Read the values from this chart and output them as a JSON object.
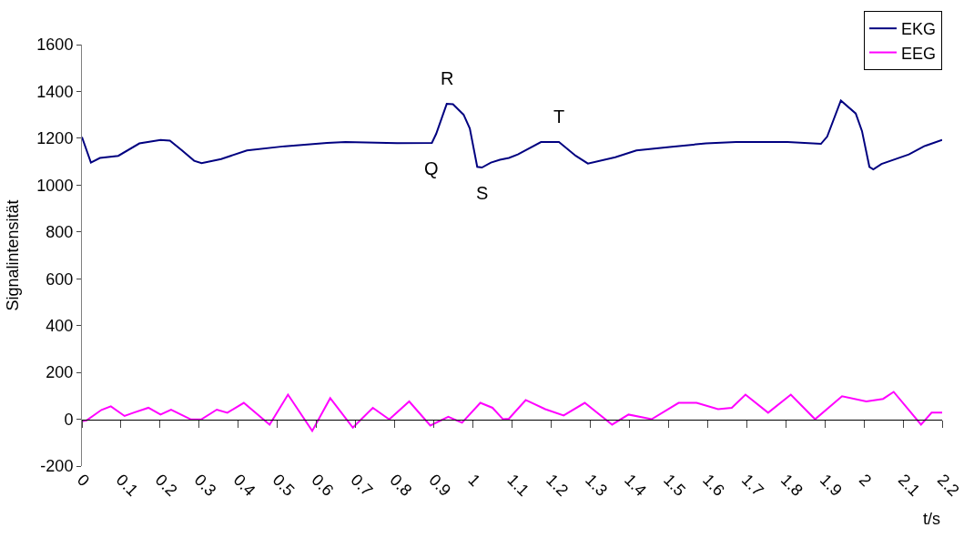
{
  "chart_data": {
    "type": "line",
    "xlabel": "t/s",
    "ylabel": "Signalintensität",
    "xlim": [
      0,
      2.2
    ],
    "xticks": [
      0,
      0.1,
      0.2,
      0.3,
      0.4,
      0.5,
      0.6,
      0.7,
      0.8,
      0.9,
      1,
      1.1,
      1.2,
      1.3,
      1.4,
      1.5,
      1.6,
      1.7,
      1.8,
      1.9,
      2,
      2.1,
      2.2
    ],
    "ylim": [
      -200,
      1600
    ],
    "yticks": [
      -200,
      0,
      200,
      400,
      600,
      800,
      1000,
      1200,
      1400,
      1600
    ],
    "legend": "top right",
    "marker": "none",
    "line_style": "solid",
    "annotations": [
      {
        "text": "R",
        "x": 0.933,
        "y": 1347
      },
      {
        "text": "Q",
        "x": 0.895,
        "y": 1180
      },
      {
        "text": "S",
        "x": 1.023,
        "y": 1075
      },
      {
        "text": "T",
        "x": 1.22,
        "y": 1184
      }
    ],
    "series": [
      {
        "name": "EKG",
        "color": "#000080",
        "x": [
          0,
          0.023,
          0.046,
          0.093,
          0.147,
          0.201,
          0.225,
          0.256,
          0.287,
          0.306,
          0.356,
          0.422,
          0.519,
          0.627,
          0.674,
          0.806,
          0.895,
          0.906,
          0.933,
          0.949,
          0.976,
          0.992,
          1.011,
          1.023,
          1.046,
          1.069,
          1.092,
          1.115,
          1.174,
          1.22,
          1.263,
          1.294,
          1.364,
          1.418,
          1.503,
          1.596,
          1.673,
          1.805,
          1.89,
          1.906,
          1.941,
          1.979,
          1.995,
          2.014,
          2.024,
          2.045,
          2.115,
          2.154,
          2.2
        ],
        "values": [
          1205,
          1096,
          1116,
          1125,
          1178,
          1193,
          1190,
          1148,
          1104,
          1094,
          1111,
          1148,
          1166,
          1180,
          1184,
          1179,
          1180,
          1219,
          1347,
          1345,
          1301,
          1242,
          1078,
          1075,
          1096,
          1108,
          1116,
          1131,
          1184,
          1184,
          1125,
          1092,
          1119,
          1148,
          1163,
          1178,
          1184,
          1184,
          1176,
          1207,
          1361,
          1306,
          1231,
          1078,
          1067,
          1090,
          1131,
          1166,
          1193
        ]
      },
      {
        "name": "EEG",
        "color": "#ff00ff",
        "x": [
          0,
          0.012,
          0.05,
          0.074,
          0.109,
          0.132,
          0.17,
          0.201,
          0.228,
          0.279,
          0.306,
          0.345,
          0.372,
          0.414,
          0.48,
          0.527,
          0.589,
          0.635,
          0.693,
          0.744,
          0.786,
          0.837,
          0.891,
          0.937,
          0.972,
          1.019,
          1.05,
          1.077,
          1.092,
          1.135,
          1.185,
          1.232,
          1.286,
          1.356,
          1.398,
          1.457,
          1.526,
          1.572,
          1.627,
          1.662,
          1.697,
          1.755,
          1.813,
          1.875,
          1.944,
          2.006,
          2.049,
          2.076,
          2.146,
          2.173,
          2.2
        ],
        "values": [
          -9,
          -5,
          40,
          55,
          14,
          28,
          49,
          20,
          41,
          -1,
          0,
          41,
          28,
          70,
          -23,
          105,
          -50,
          90,
          -36,
          49,
          -1,
          76,
          -27,
          11,
          -15,
          70,
          49,
          0,
          2,
          82,
          43,
          16,
          70,
          -23,
          20,
          0,
          70,
          70,
          43,
          49,
          105,
          28,
          105,
          0,
          98,
          76,
          87,
          117,
          -23,
          28,
          28
        ]
      }
    ]
  }
}
